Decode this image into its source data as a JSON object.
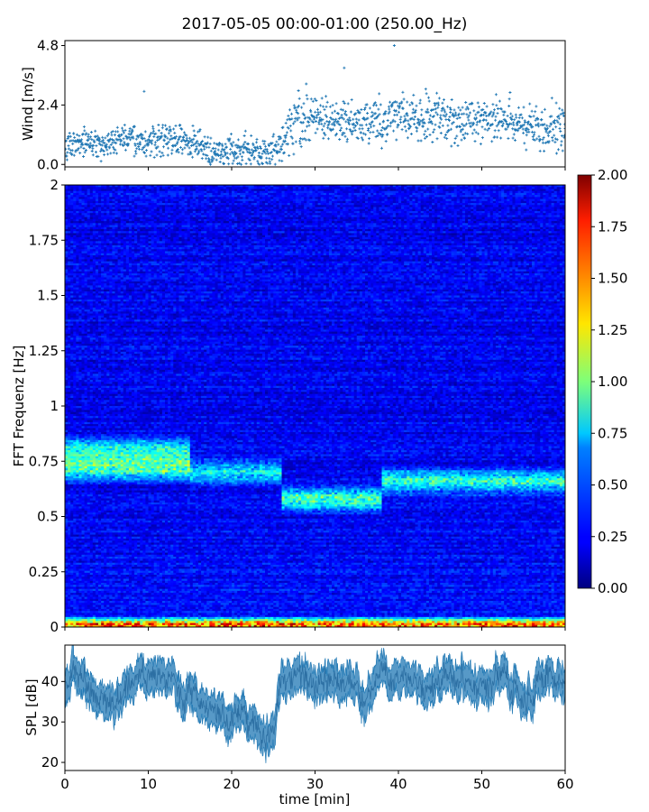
{
  "figure": {
    "title": "2017-05-05 00:00-01:00 (250.00_Hz)"
  },
  "chart_data": [
    {
      "type": "scatter",
      "panel": "wind",
      "ylabel": "Wind [m/s]",
      "xlim": [
        0,
        60
      ],
      "ylim": [
        -0.1,
        5.0
      ],
      "yticks": [
        0.0,
        2.4,
        4.8
      ],
      "ytick_labels": [
        "0.0",
        "2.4",
        "4.8"
      ],
      "series": [
        {
          "color": "#1f77b4",
          "marker": "+",
          "x": [
            0,
            2,
            4,
            6,
            8,
            10,
            12,
            14,
            16,
            18,
            20,
            22,
            24,
            25,
            26,
            27,
            28,
            30,
            32,
            34,
            36,
            38,
            40,
            42,
            44,
            46,
            48,
            50,
            52,
            54,
            56,
            58,
            60
          ],
          "y": [
            0.8,
            0.9,
            0.8,
            0.9,
            1.0,
            0.9,
            1.0,
            1.0,
            0.8,
            0.5,
            0.5,
            0.6,
            0.5,
            0.5,
            0.9,
            1.5,
            1.8,
            1.9,
            1.7,
            1.6,
            1.7,
            1.8,
            1.9,
            2.0,
            1.9,
            1.8,
            1.8,
            1.9,
            1.8,
            1.7,
            1.6,
            1.5,
            1.5
          ]
        }
      ],
      "annotations": [
        {
          "x": 9.5,
          "y": 2.95
        },
        {
          "x": 33.5,
          "y": 3.9
        },
        {
          "x": 39.5,
          "y": 4.8
        }
      ]
    },
    {
      "type": "heatmap",
      "panel": "spectrogram",
      "ylabel": "FFT Frequenz [Hz]",
      "xlim": [
        0,
        60
      ],
      "ylim": [
        0,
        2
      ],
      "yticks": [
        0,
        0.25,
        0.5,
        0.75,
        1,
        1.25,
        1.5,
        1.75,
        2
      ],
      "ytick_labels": [
        "0",
        "0.25",
        "0.5",
        "0.75",
        "1",
        "1.25",
        "1.5",
        "1.75",
        "2"
      ],
      "colormap": "jet",
      "colorbar": {
        "range": [
          0.0,
          2.0
        ],
        "ticks": [
          "0.00",
          "0.25",
          "0.50",
          "0.75",
          "1.00",
          "1.25",
          "1.50",
          "1.75",
          "2.00"
        ]
      },
      "features": [
        {
          "t_start": 0,
          "t_end": 15,
          "freq": 0.72,
          "level": 0.8
        },
        {
          "t_start": 0,
          "t_end": 15,
          "freq": 0.8,
          "level": 0.6
        },
        {
          "t_start": 15,
          "t_end": 26,
          "freq": 0.7,
          "level": 0.55
        },
        {
          "t_start": 26,
          "t_end": 38,
          "freq": 0.58,
          "level": 0.7
        },
        {
          "t_start": 38,
          "t_end": 60,
          "freq": 0.66,
          "level": 0.65
        },
        {
          "t_start": 0,
          "t_end": 60,
          "freq": 0.01,
          "level": 1.4
        }
      ]
    },
    {
      "type": "area",
      "panel": "spl",
      "xlabel": "time [min]",
      "ylabel": "SPL [dB]",
      "xlim": [
        0,
        60
      ],
      "ylim": [
        18,
        49
      ],
      "xticks": [
        0,
        10,
        20,
        30,
        40,
        50,
        60
      ],
      "xtick_labels": [
        "0",
        "10",
        "20",
        "30",
        "40",
        "50",
        "60"
      ],
      "yticks": [
        20,
        30,
        40
      ],
      "ytick_labels": [
        "20",
        "30",
        "40"
      ],
      "series": [
        {
          "color": "#1f77b4",
          "x": [
            0,
            1,
            2,
            4,
            6,
            8,
            9,
            10,
            12,
            14,
            16,
            18,
            20,
            22,
            23,
            24,
            25,
            26,
            27,
            29,
            31,
            33,
            35,
            36,
            37,
            38,
            40,
            42,
            44,
            46,
            48,
            50,
            52,
            54,
            56,
            58,
            60
          ],
          "y": [
            40,
            43,
            39,
            36,
            35,
            38,
            43,
            41,
            40,
            38,
            35,
            32,
            31,
            31,
            28,
            25,
            30,
            39,
            40,
            41,
            38,
            40,
            41,
            34,
            40,
            44,
            40,
            39,
            38,
            42,
            40,
            37,
            41,
            39,
            37,
            40,
            40
          ],
          "band": 2.5
        }
      ]
    }
  ]
}
